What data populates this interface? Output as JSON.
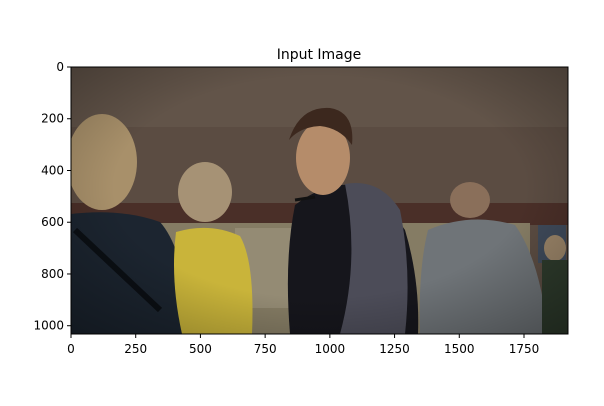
{
  "chart_data": {
    "type": "image",
    "title": "Input Image",
    "xlabel": "",
    "ylabel": "",
    "xlim": [
      0,
      1920
    ],
    "ylim": [
      1032,
      0
    ],
    "x_ticks": [
      0,
      250,
      500,
      750,
      1000,
      1250,
      1500,
      1750
    ],
    "y_ticks": [
      0,
      200,
      400,
      600,
      800,
      1000
    ],
    "grid": false,
    "image_content": "photo-scene-people",
    "colors": {
      "wall": "#5b4c42",
      "ceiling": "#6a5c52",
      "stripe": "#4a2f28",
      "mural": "#8a8268",
      "skin": "#b58c6a",
      "dark_shirt": "#16161c",
      "gray_vest": "#4c4c58",
      "yellow_shirt": "#c9b43a",
      "gray_tshirt": "#6f7478",
      "blonde_hair": "#a8906a",
      "dark_navy": "#1c2530"
    }
  }
}
